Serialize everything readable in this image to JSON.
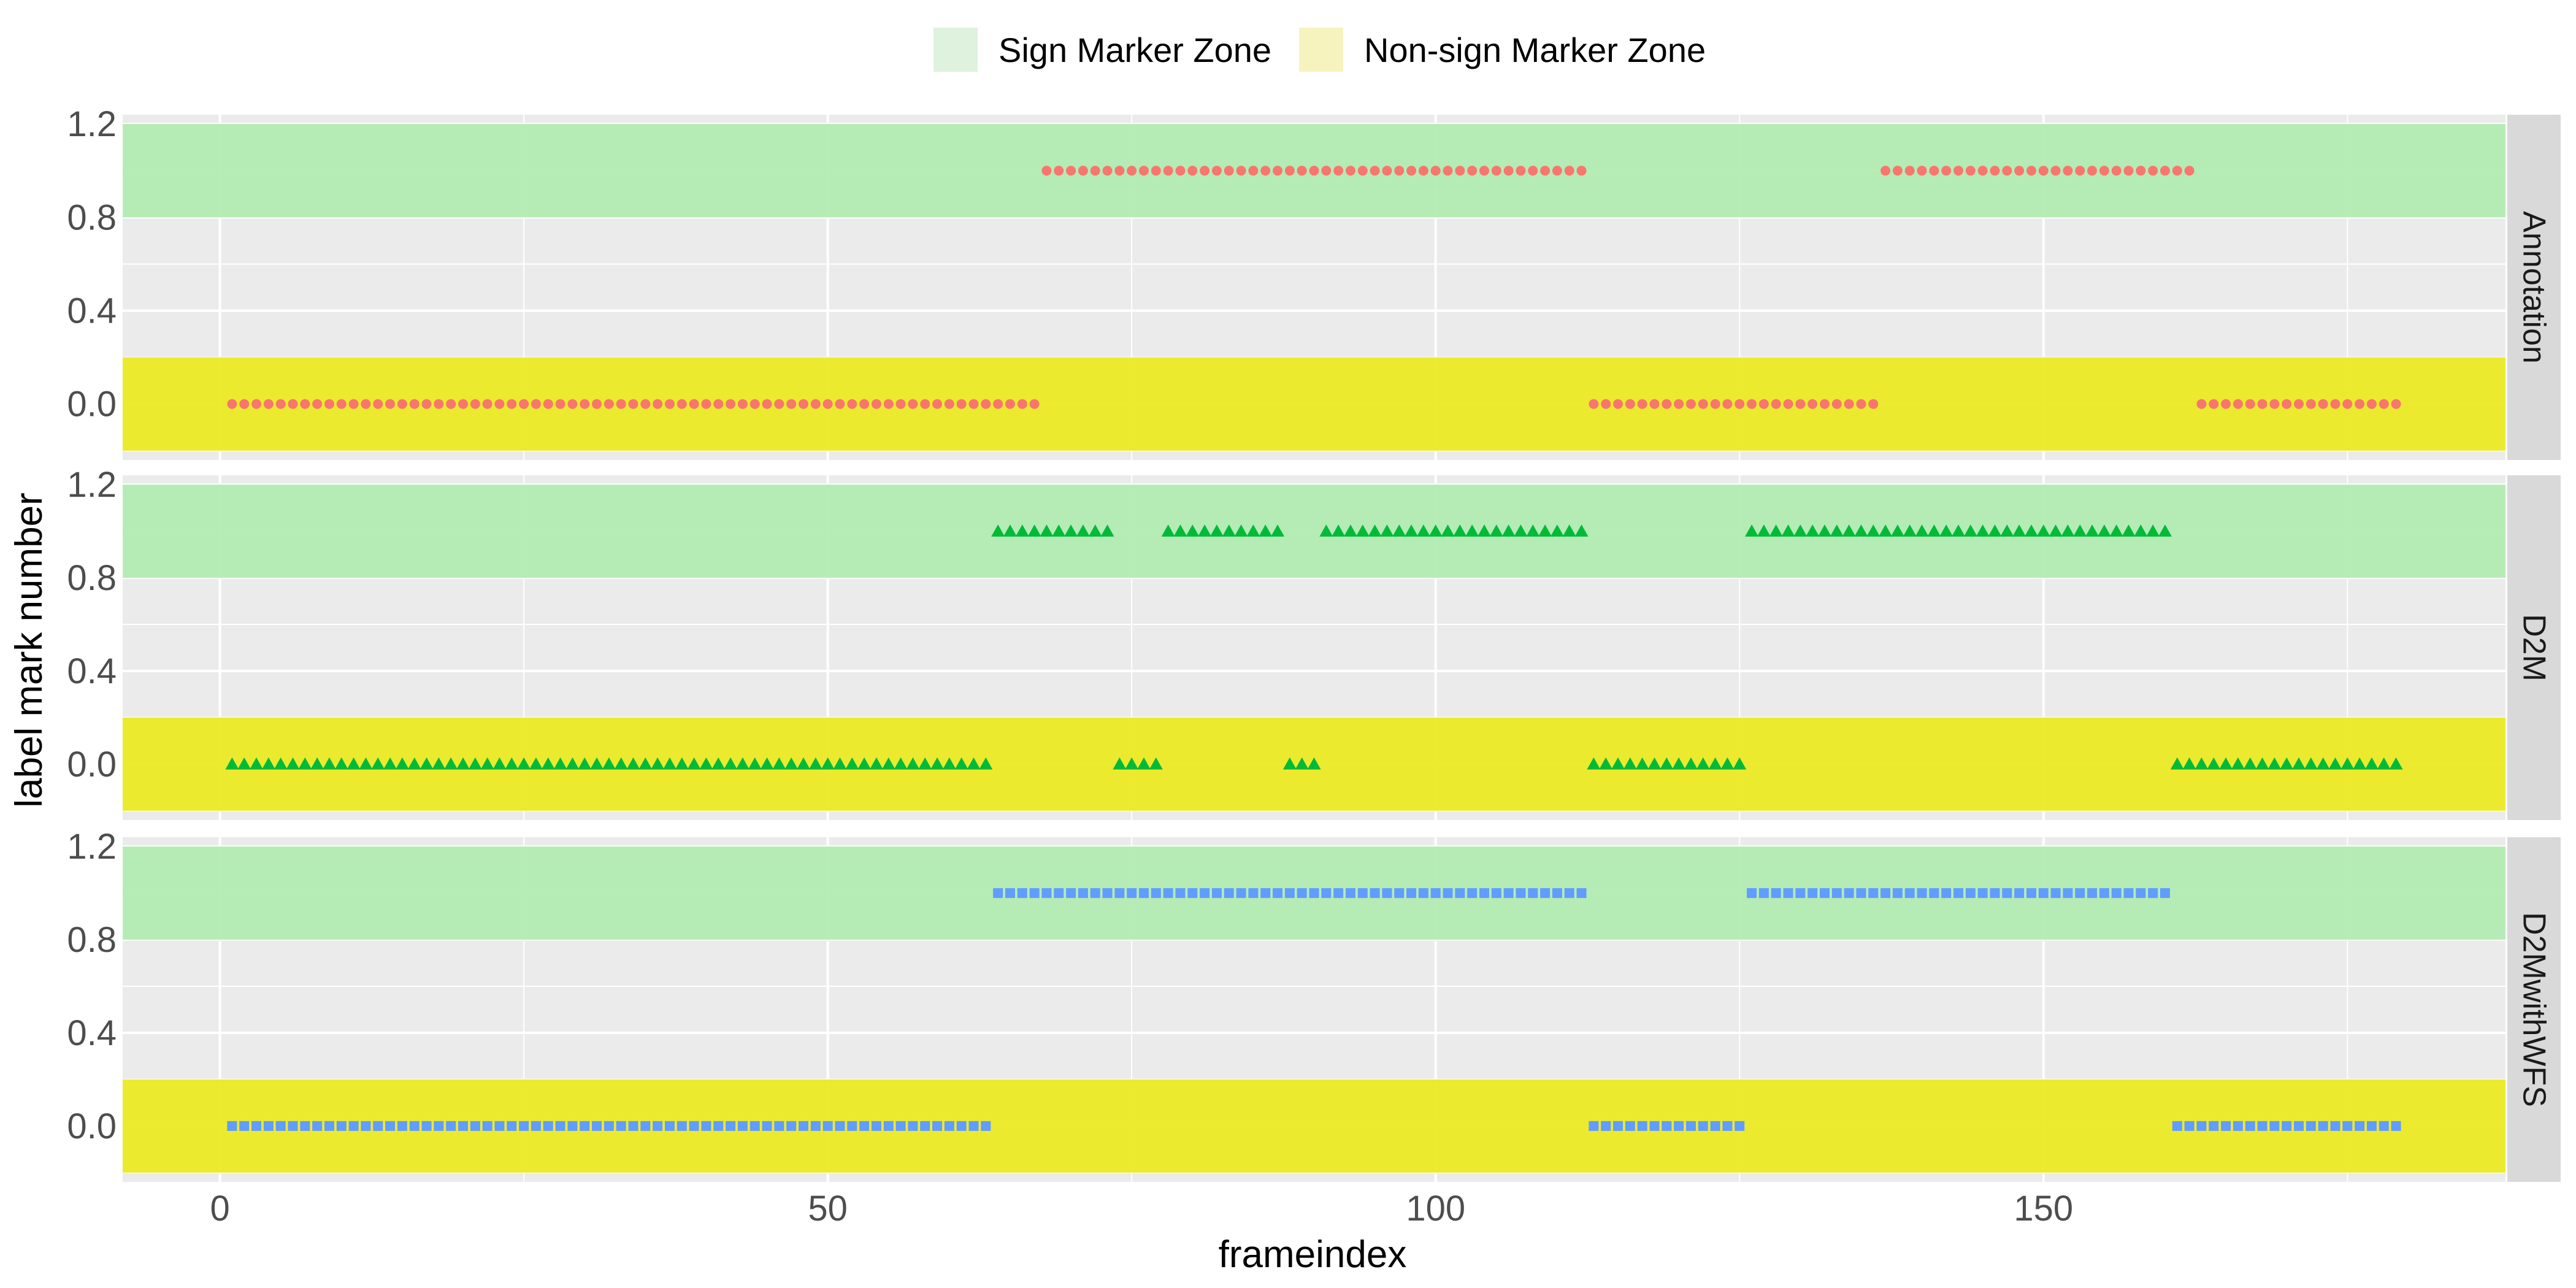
{
  "chart_data": {
    "type": "scatter",
    "xlabel": "frameindex",
    "ylabel": "label mark number",
    "xlim": [
      -8,
      188
    ],
    "ylim": [
      -0.24,
      1.24
    ],
    "x_ticks": [
      0,
      50,
      100,
      150
    ],
    "y_ticks": [
      0.0,
      0.4,
      0.8,
      1.2
    ],
    "y_tick_labels": [
      "0.0",
      "0.4",
      "0.8",
      "1.2"
    ],
    "grid": true,
    "legend_position": "top",
    "legend": [
      {
        "label": "Sign Marker Zone",
        "color": "#dff2de"
      },
      {
        "label": "Non-sign Marker Zone",
        "color": "#f6f3bf"
      }
    ],
    "zones": [
      {
        "name": "Sign Marker Zone",
        "y_range": [
          0.8,
          1.2
        ],
        "color": "#b0ebb0"
      },
      {
        "name": "Non-sign Marker Zone",
        "y_range": [
          -0.2,
          0.2
        ],
        "color": "#ebea20"
      }
    ],
    "panels": [
      {
        "facet": "Annotation",
        "marker": "circle",
        "color": "#f8766d",
        "segments": [
          {
            "x_start": 1,
            "x_end": 67,
            "y": 0
          },
          {
            "x_start": 68,
            "x_end": 112,
            "y": 1
          },
          {
            "x_start": 113,
            "x_end": 136,
            "y": 0
          },
          {
            "x_start": 137,
            "x_end": 162,
            "y": 1
          },
          {
            "x_start": 163,
            "x_end": 179,
            "y": 0
          }
        ]
      },
      {
        "facet": "D2M",
        "marker": "triangle",
        "color": "#00ba38",
        "segments": [
          {
            "x_start": 1,
            "x_end": 63,
            "y": 0
          },
          {
            "x_start": 64,
            "x_end": 73,
            "y": 1
          },
          {
            "x_start": 74,
            "x_end": 77,
            "y": 0
          },
          {
            "x_start": 78,
            "x_end": 87,
            "y": 1
          },
          {
            "x_start": 88,
            "x_end": 90,
            "y": 0
          },
          {
            "x_start": 91,
            "x_end": 112,
            "y": 1
          },
          {
            "x_start": 113,
            "x_end": 125,
            "y": 0
          },
          {
            "x_start": 126,
            "x_end": 160,
            "y": 1
          },
          {
            "x_start": 161,
            "x_end": 179,
            "y": 0
          }
        ]
      },
      {
        "facet": "D2MwithWFS",
        "marker": "square",
        "color": "#619cff",
        "segments": [
          {
            "x_start": 1,
            "x_end": 63,
            "y": 0
          },
          {
            "x_start": 64,
            "x_end": 112,
            "y": 1
          },
          {
            "x_start": 113,
            "x_end": 125,
            "y": 0
          },
          {
            "x_start": 126,
            "x_end": 160,
            "y": 1
          },
          {
            "x_start": 161,
            "x_end": 179,
            "y": 0
          }
        ]
      }
    ]
  }
}
